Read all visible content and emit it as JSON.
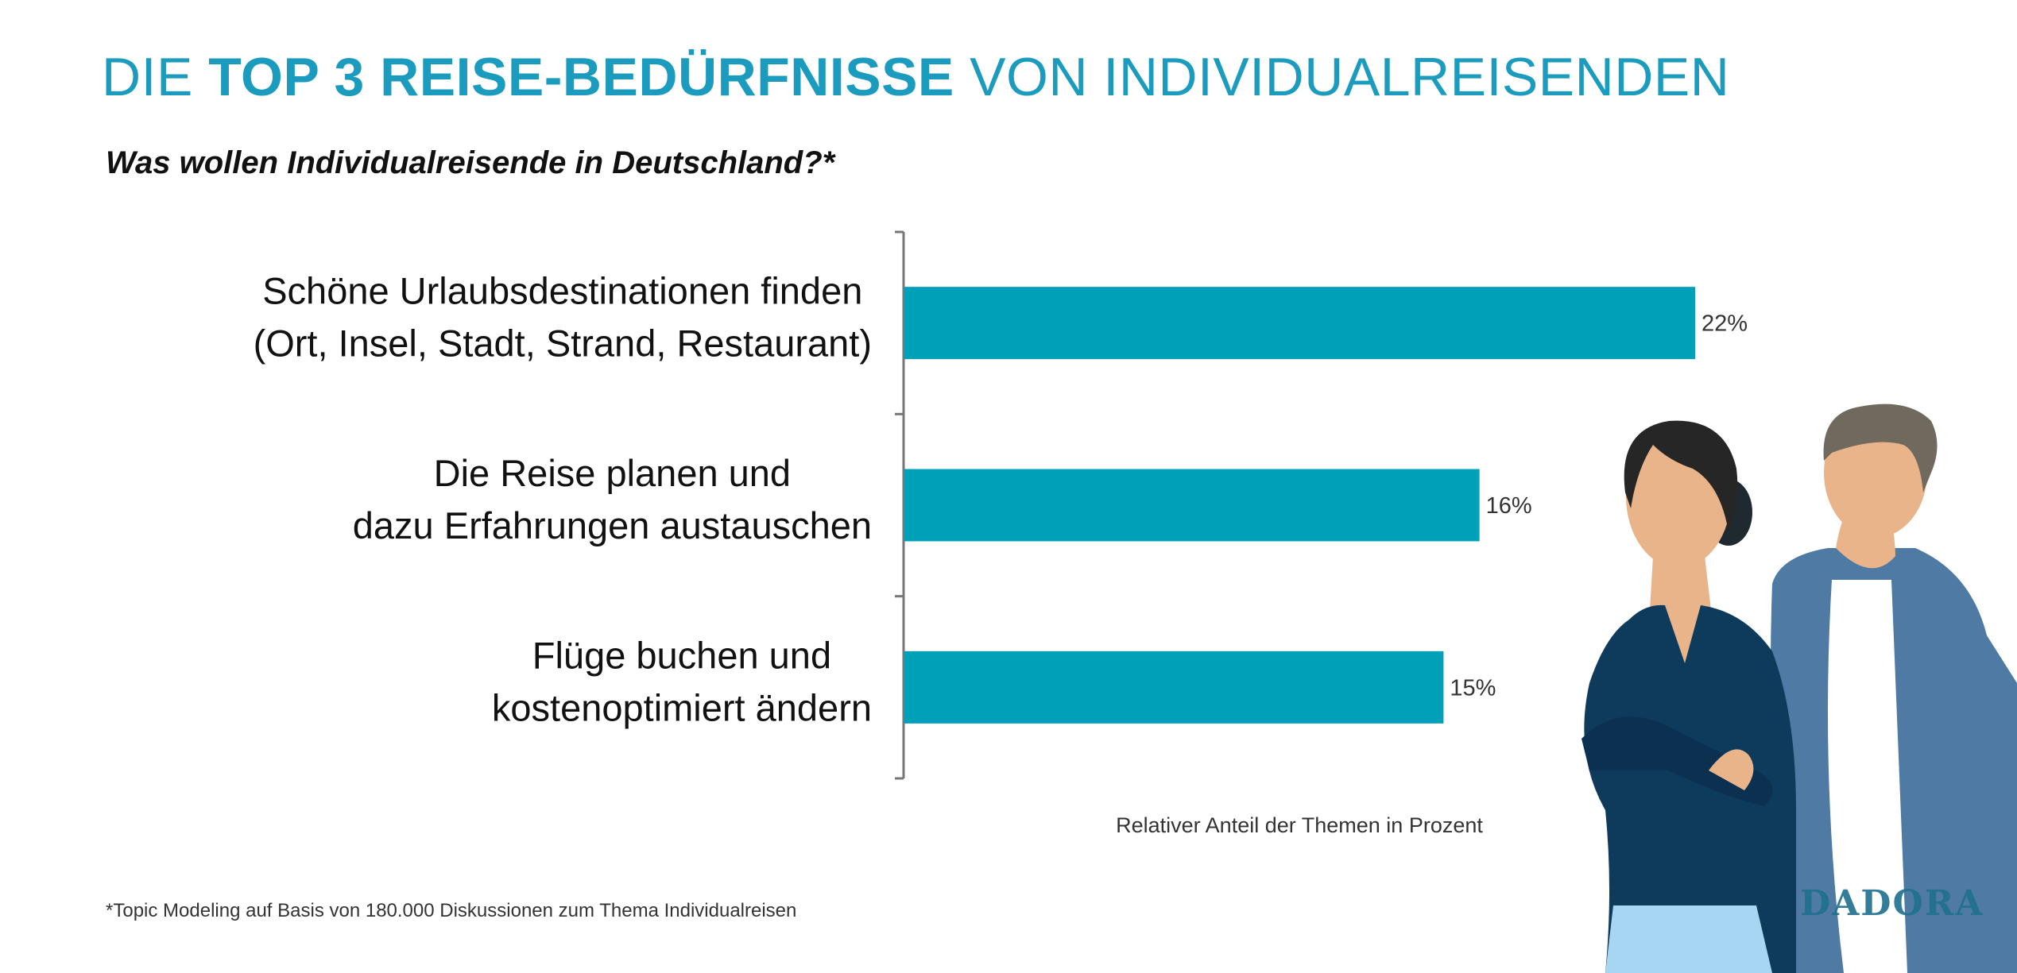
{
  "title": {
    "prefix": "DIE ",
    "bold": "TOP 3 REISE-BEDÜRFNISSE",
    "suffix": " VON INDIVIDUALREISENDEN"
  },
  "subtitle": "Was wollen Individualreisende in Deutschland?*",
  "chart_data": {
    "type": "bar",
    "orientation": "horizontal",
    "categories": [
      [
        "Schöne Urlaubsdestinationen finden",
        "(Ort, Insel, Stadt, Strand, Restaurant)"
      ],
      [
        "Die Reise planen und",
        "dazu Erfahrungen austauschen"
      ],
      [
        "Flüge buchen und",
        "kostenoptimiert ändern"
      ]
    ],
    "values": [
      22,
      16,
      15
    ],
    "value_labels": [
      "22%",
      "16%",
      "15%"
    ],
    "xlabel": "Relativer Anteil der Themen in Prozent",
    "xlim": [
      0,
      22
    ],
    "bar_color": "#00a0b8",
    "grid": false
  },
  "footnote": "*Topic Modeling auf Basis von 180.000 Diskussionen zum Thema Individualreisen",
  "logo": "DADORA",
  "colors": {
    "title": "#1b9bbe",
    "bar": "#00a0b8",
    "woman_shirt": "#0e3a5c",
    "man_jacket": "#4f7aa3"
  }
}
